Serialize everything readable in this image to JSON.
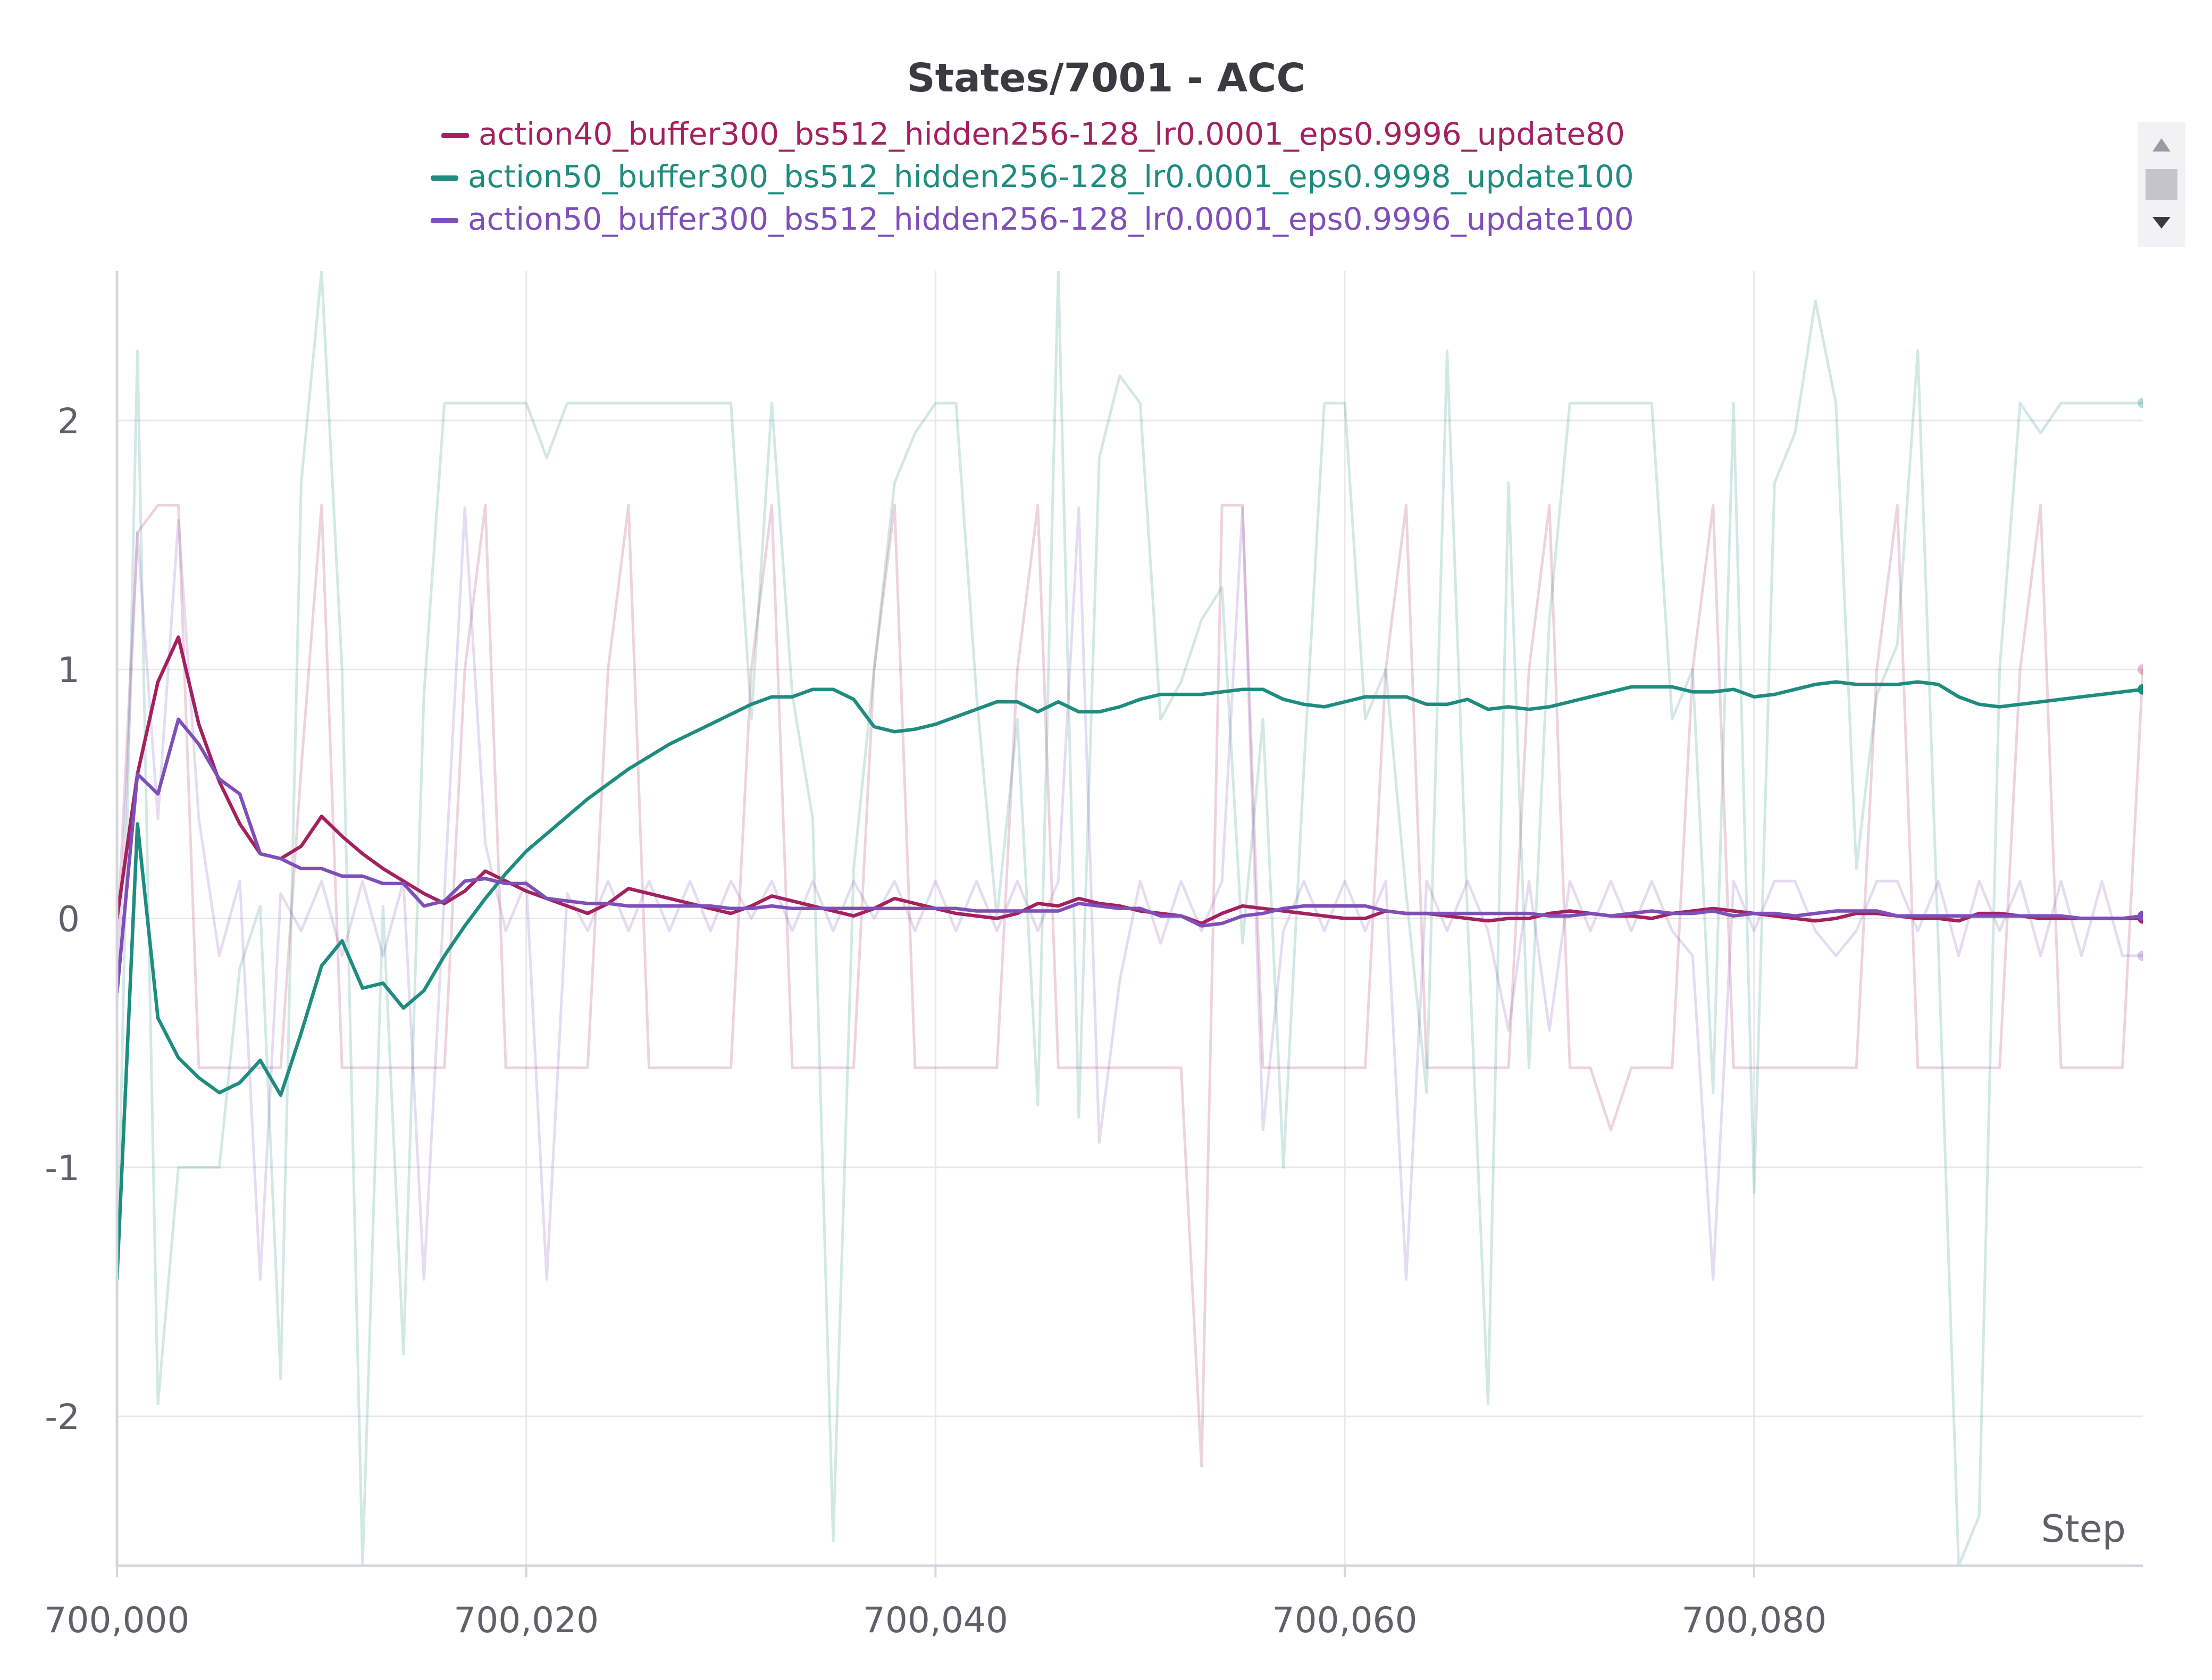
{
  "chart_data": {
    "type": "line",
    "title": "States/7001 - ACC",
    "xlabel": "Step",
    "ylabel": "",
    "x_start": 700000,
    "x_step": 1,
    "xlim": [
      700000,
      700099
    ],
    "ylim": [
      -2.6,
      2.6
    ],
    "x_ticks": [
      700000,
      700020,
      700040,
      700060,
      700080
    ],
    "x_tick_labels": [
      "700,000",
      "700,020",
      "700,040",
      "700,060",
      "700,080"
    ],
    "y_ticks": [
      -2,
      -1,
      0,
      1,
      2
    ],
    "y_tick_labels": [
      "-2",
      "-1",
      "0",
      "1",
      "2"
    ],
    "grid": true,
    "legend_position": "top-center",
    "series": [
      {
        "name": "action40_buffer300_bs512_hidden256-128_lr0.0001_eps0.9996_update80",
        "color": "#a3215f",
        "raw": [
          -0.1,
          1.55,
          1.66,
          1.66,
          -0.6,
          -0.6,
          -0.6,
          -0.6,
          -0.6,
          0.6,
          1.66,
          -0.6,
          -0.6,
          -0.6,
          -0.6,
          -0.6,
          -0.6,
          1.0,
          1.66,
          -0.6,
          -0.6,
          -0.6,
          -0.6,
          -0.6,
          1.0,
          1.66,
          -0.6,
          -0.6,
          -0.6,
          -0.6,
          -0.6,
          1.0,
          1.66,
          -0.6,
          -0.6,
          -0.6,
          -0.6,
          1.0,
          1.66,
          -0.6,
          -0.6,
          -0.6,
          -0.6,
          -0.6,
          1.0,
          1.66,
          -0.6,
          -0.6,
          -0.6,
          -0.6,
          -0.6,
          -0.6,
          -0.6,
          -2.2,
          1.66,
          1.66,
          -0.6,
          -0.6,
          -0.6,
          -0.6,
          -0.6,
          -0.6,
          1.0,
          1.66,
          -0.6,
          -0.6,
          -0.6,
          -0.6,
          -0.6,
          1.0,
          1.66,
          -0.6,
          -0.6,
          -0.85,
          -0.6,
          -0.6,
          -0.6,
          1.0,
          1.66,
          -0.6,
          -0.6,
          -0.6,
          -0.6,
          -0.6,
          -0.6,
          -0.6,
          1.0,
          1.66,
          -0.6,
          -0.6,
          -0.6,
          -0.6,
          -0.6,
          1.0,
          1.66,
          -0.6,
          -0.6,
          -0.6,
          -0.6,
          1.0
        ],
        "smoothed": [
          0.0,
          0.58,
          0.95,
          1.13,
          0.78,
          0.55,
          0.38,
          0.26,
          0.24,
          0.29,
          0.41,
          0.33,
          0.26,
          0.2,
          0.15,
          0.1,
          0.06,
          0.11,
          0.19,
          0.15,
          0.11,
          0.08,
          0.05,
          0.02,
          0.06,
          0.12,
          0.1,
          0.08,
          0.06,
          0.04,
          0.02,
          0.05,
          0.09,
          0.07,
          0.05,
          0.03,
          0.01,
          0.04,
          0.08,
          0.06,
          0.04,
          0.02,
          0.01,
          0.0,
          0.02,
          0.06,
          0.05,
          0.08,
          0.06,
          0.05,
          0.03,
          0.02,
          0.01,
          -0.02,
          0.02,
          0.05,
          0.04,
          0.03,
          0.02,
          0.01,
          0.0,
          0.0,
          0.03,
          0.02,
          0.02,
          0.01,
          0.0,
          -0.01,
          0.0,
          0.0,
          0.02,
          0.03,
          0.02,
          0.01,
          0.01,
          0.0,
          0.02,
          0.03,
          0.04,
          0.03,
          0.02,
          0.01,
          0.0,
          -0.01,
          0.0,
          0.02,
          0.02,
          0.01,
          0.0,
          0.0,
          -0.01,
          0.02,
          0.02,
          0.01,
          0.0,
          0.0,
          0.0,
          0.0,
          0.0,
          0.0
        ]
      },
      {
        "name": "action50_buffer300_bs512_hidden256-128_lr0.0001_eps0.9998_update100",
        "color": "#1e8c7e",
        "raw": [
          -1.5,
          2.28,
          -1.95,
          -1.0,
          -1.0,
          -1.0,
          -0.2,
          0.05,
          -1.85,
          1.75,
          2.6,
          1.0,
          -2.6,
          0.05,
          -1.75,
          0.9,
          2.07,
          2.07,
          2.07,
          2.07,
          2.07,
          1.85,
          2.07,
          2.07,
          2.07,
          2.07,
          2.07,
          2.07,
          2.07,
          2.07,
          2.07,
          0.8,
          2.07,
          0.9,
          0.4,
          -2.5,
          0.2,
          1.0,
          1.75,
          1.95,
          2.07,
          2.07,
          0.9,
          0.0,
          0.8,
          -0.75,
          2.6,
          -0.8,
          1.85,
          2.18,
          2.07,
          0.8,
          0.95,
          1.2,
          1.33,
          -0.1,
          0.8,
          -1.0,
          0.6,
          2.07,
          2.07,
          0.8,
          1.0,
          0.1,
          -0.7,
          2.28,
          0.0,
          -1.95,
          1.75,
          -0.6,
          1.2,
          2.07,
          2.07,
          2.07,
          2.07,
          2.07,
          0.8,
          1.0,
          -0.7,
          2.07,
          -1.1,
          1.75,
          1.95,
          2.48,
          2.07,
          0.2,
          0.9,
          1.1,
          2.28,
          -0.1,
          -2.6,
          -2.4,
          1.0,
          2.07,
          1.95,
          2.07,
          2.07,
          2.07,
          2.07,
          2.07
        ],
        "smoothed": [
          -1.45,
          0.38,
          -0.4,
          -0.56,
          -0.64,
          -0.7,
          -0.66,
          -0.57,
          -0.71,
          -0.46,
          -0.19,
          -0.09,
          -0.28,
          -0.26,
          -0.36,
          -0.29,
          -0.15,
          -0.03,
          0.08,
          0.18,
          0.27,
          0.34,
          0.41,
          0.48,
          0.54,
          0.6,
          0.65,
          0.7,
          0.74,
          0.78,
          0.82,
          0.86,
          0.89,
          0.89,
          0.92,
          0.92,
          0.88,
          0.77,
          0.75,
          0.76,
          0.78,
          0.81,
          0.84,
          0.87,
          0.87,
          0.83,
          0.87,
          0.83,
          0.83,
          0.85,
          0.88,
          0.9,
          0.9,
          0.9,
          0.91,
          0.92,
          0.92,
          0.88,
          0.86,
          0.85,
          0.87,
          0.89,
          0.89,
          0.89,
          0.86,
          0.86,
          0.88,
          0.84,
          0.85,
          0.84,
          0.85,
          0.87,
          0.89,
          0.91,
          0.93,
          0.93,
          0.93,
          0.91,
          0.91,
          0.92,
          0.89,
          0.9,
          0.92,
          0.94,
          0.95,
          0.94,
          0.94,
          0.94,
          0.95,
          0.94,
          0.89,
          0.86,
          0.85,
          0.86,
          0.87,
          0.88,
          0.89,
          0.9,
          0.91,
          0.92
        ]
      },
      {
        "name": "action50_buffer300_bs512_hidden256-128_lr0.0001_eps0.9996_update100",
        "color": "#7e4fb8",
        "raw": [
          -0.35,
          1.55,
          0.4,
          1.6,
          0.4,
          -0.15,
          0.15,
          -1.45,
          0.1,
          -0.05,
          0.15,
          -0.15,
          0.15,
          -0.15,
          0.15,
          -1.45,
          0.1,
          1.65,
          0.3,
          -0.05,
          0.15,
          -1.45,
          0.1,
          -0.05,
          0.15,
          -0.05,
          0.15,
          -0.05,
          0.15,
          -0.05,
          0.15,
          0.0,
          0.15,
          -0.05,
          0.15,
          -0.05,
          0.15,
          0.0,
          0.15,
          -0.05,
          0.15,
          -0.05,
          0.15,
          -0.05,
          0.15,
          -0.05,
          0.15,
          1.65,
          -0.9,
          -0.25,
          0.15,
          -0.1,
          0.15,
          -0.05,
          0.15,
          1.65,
          -0.85,
          -0.05,
          0.15,
          -0.05,
          0.15,
          -0.05,
          0.15,
          -1.45,
          0.15,
          -0.05,
          0.15,
          -0.05,
          -0.45,
          0.15,
          -0.45,
          0.15,
          -0.05,
          0.15,
          -0.05,
          0.15,
          -0.05,
          -0.15,
          -1.45,
          0.15,
          -0.05,
          0.15,
          0.15,
          -0.05,
          -0.15,
          -0.05,
          0.15,
          0.15,
          -0.05,
          0.15,
          -0.15,
          0.15,
          -0.05,
          0.15,
          -0.15,
          0.15,
          -0.15,
          0.15,
          -0.15,
          -0.15
        ],
        "smoothed": [
          -0.3,
          0.58,
          0.5,
          0.8,
          0.7,
          0.56,
          0.5,
          0.26,
          0.24,
          0.2,
          0.2,
          0.17,
          0.17,
          0.14,
          0.14,
          0.05,
          0.07,
          0.15,
          0.16,
          0.14,
          0.14,
          0.08,
          0.07,
          0.06,
          0.06,
          0.05,
          0.05,
          0.05,
          0.05,
          0.05,
          0.04,
          0.04,
          0.05,
          0.04,
          0.04,
          0.04,
          0.04,
          0.04,
          0.04,
          0.04,
          0.04,
          0.04,
          0.03,
          0.03,
          0.03,
          0.03,
          0.03,
          0.06,
          0.05,
          0.04,
          0.04,
          0.01,
          0.01,
          -0.03,
          -0.02,
          0.01,
          0.02,
          0.04,
          0.05,
          0.05,
          0.05,
          0.05,
          0.03,
          0.02,
          0.02,
          0.02,
          0.02,
          0.02,
          0.02,
          0.02,
          0.01,
          0.01,
          0.02,
          0.01,
          0.02,
          0.03,
          0.02,
          0.02,
          0.03,
          0.01,
          0.02,
          0.02,
          0.01,
          0.02,
          0.03,
          0.03,
          0.03,
          0.01,
          0.01,
          0.01,
          0.01,
          0.01,
          0.01,
          0.01,
          0.01,
          0.01,
          0.0,
          0.0,
          0.0,
          0.01
        ]
      }
    ]
  },
  "legend_scroll": {
    "up_icon": "triangle-up-icon",
    "down_icon": "triangle-down-icon"
  }
}
